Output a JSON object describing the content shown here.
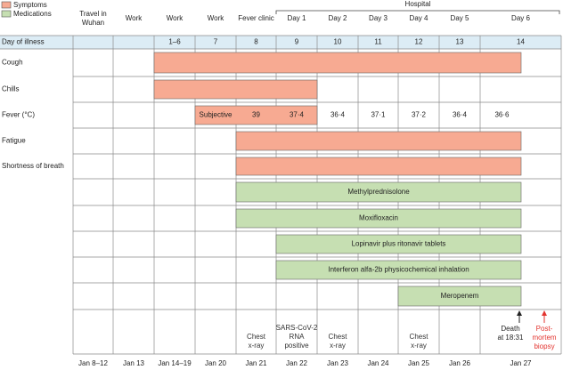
{
  "legend": {
    "items": [
      {
        "label": "Symptoms",
        "color": "#f7aa92"
      },
      {
        "label": "Medications",
        "color": "#c6dfb2"
      }
    ]
  },
  "hospital_label": "Hospital",
  "day_row_label": "Day of illness",
  "columns": [
    {
      "header": [
        "Travel in",
        "Wuhan"
      ],
      "day": "",
      "date": "Jan 8–12"
    },
    {
      "header": [
        "Work"
      ],
      "day": "",
      "date": "Jan 13"
    },
    {
      "header": [
        "Work"
      ],
      "day": "1–6",
      "date": "Jan 14–19"
    },
    {
      "header": [
        "Work"
      ],
      "day": "7",
      "date": "Jan 20"
    },
    {
      "header": [
        "Fever clinic"
      ],
      "day": "8",
      "date": "Jan 21"
    },
    {
      "header": [
        "Day 1"
      ],
      "day": "9",
      "date": "Jan 22"
    },
    {
      "header": [
        "Day 2"
      ],
      "day": "10",
      "date": "Jan 23"
    },
    {
      "header": [
        "Day 3"
      ],
      "day": "11",
      "date": "Jan 24"
    },
    {
      "header": [
        "Day 4"
      ],
      "day": "12",
      "date": "Jan 25"
    },
    {
      "header": [
        "Day 5"
      ],
      "day": "13",
      "date": "Jan 26"
    },
    {
      "header": [
        "Day 6"
      ],
      "day": "14",
      "date": "Jan 27"
    }
  ],
  "rows": [
    {
      "label": "Cough"
    },
    {
      "label": "Chills"
    },
    {
      "label": "Fever (°C)"
    },
    {
      "label": "Fatigue"
    },
    {
      "label": "Shortness of breath"
    },
    {
      "label": ""
    },
    {
      "label": ""
    },
    {
      "label": ""
    },
    {
      "label": ""
    },
    {
      "label": ""
    },
    {
      "label": ""
    }
  ],
  "bars": [
    {
      "row": 0,
      "start_col": 2,
      "end_col": 10,
      "kind": "symptom",
      "label": ""
    },
    {
      "row": 1,
      "start_col": 2,
      "end_col": 5,
      "kind": "symptom",
      "label": ""
    },
    {
      "row": 2,
      "start_col": 3,
      "end_col": 5,
      "kind": "symptom",
      "label": ""
    },
    {
      "row": 3,
      "start_col": 4,
      "end_col": 10,
      "kind": "symptom",
      "label": ""
    },
    {
      "row": 4,
      "start_col": 4,
      "end_col": 10,
      "kind": "symptom",
      "label": ""
    },
    {
      "row": 5,
      "start_col": 4,
      "end_col": 10,
      "kind": "medication",
      "label": "Methylprednisolone"
    },
    {
      "row": 6,
      "start_col": 4,
      "end_col": 10,
      "kind": "medication",
      "label": "Moxifloxacin"
    },
    {
      "row": 7,
      "start_col": 5,
      "end_col": 10,
      "kind": "medication",
      "label": "Lopinavir plus ritonavir tablets"
    },
    {
      "row": 8,
      "start_col": 5,
      "end_col": 10,
      "kind": "medication",
      "label": "Interferon alfa-2b physicochemical inhalation"
    },
    {
      "row": 9,
      "start_col": 8,
      "end_col": 10,
      "kind": "medication",
      "label": "Meropenem"
    }
  ],
  "fever_values": [
    {
      "col": 3,
      "text": "Subjective"
    },
    {
      "col": 4,
      "text": "39"
    },
    {
      "col": 5,
      "text": "37·4"
    },
    {
      "col": 6,
      "text": "36·4"
    },
    {
      "col": 7,
      "text": "37·1"
    },
    {
      "col": 8,
      "text": "37·2"
    },
    {
      "col": 9,
      "text": "36·4"
    },
    {
      "col": 10,
      "text": "36·6"
    }
  ],
  "events": [
    {
      "col": 4,
      "lines": [
        "Chest",
        "x-ray"
      ],
      "color": "#333333"
    },
    {
      "col": 5,
      "lines": [
        "SARS-CoV-2",
        "RNA",
        "positive"
      ],
      "color": "#333333"
    },
    {
      "col": 6,
      "lines": [
        "Chest",
        "x-ray"
      ],
      "color": "#333333"
    },
    {
      "col": 8,
      "lines": [
        "Chest",
        "x-ray"
      ],
      "color": "#333333"
    }
  ],
  "death": {
    "lines": [
      "Death",
      "at 18:31"
    ],
    "color": "#222222"
  },
  "biopsy": {
    "lines": [
      "Post-",
      "mortem",
      "biopsy"
    ],
    "color": "#e3342f"
  },
  "colors": {
    "symptom": "#f7aa92",
    "medication": "#c6dfb2",
    "day_row_bg": "#dcecf5",
    "grid": "#8a8a8a"
  }
}
